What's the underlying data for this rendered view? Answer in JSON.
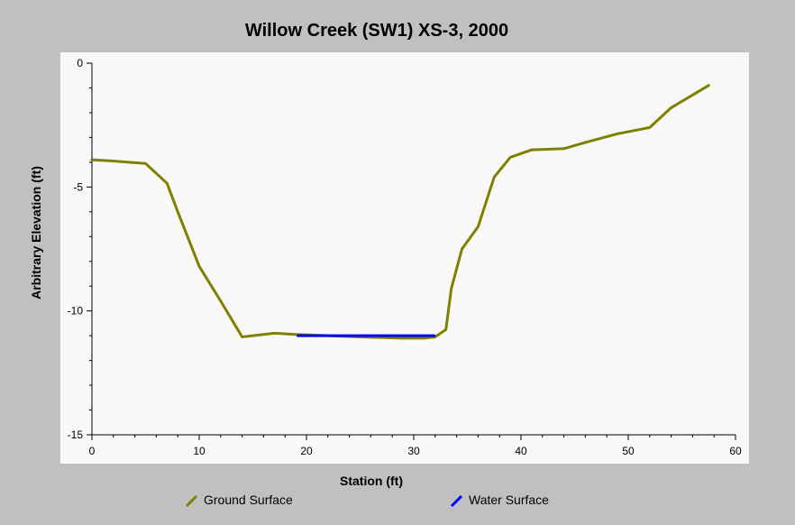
{
  "chart_data": {
    "type": "line",
    "title": "Willow Creek (SW1) XS-3, 2000",
    "xlabel": "Station (ft)",
    "ylabel": "Arbitrary Elevation (ft)",
    "xlim": [
      0,
      60
    ],
    "ylim": [
      -15,
      0
    ],
    "x_ticks": [
      "0",
      "10",
      "20",
      "30",
      "40",
      "50",
      "60"
    ],
    "y_ticks": [
      "0",
      "-5",
      "-10",
      "-15"
    ],
    "grid": false,
    "legend_position": "bottom",
    "series": [
      {
        "name": "Ground Surface",
        "color": "#808000",
        "x": [
          0,
          2,
          5,
          7,
          8,
          10,
          12,
          14,
          17,
          19,
          22,
          25,
          29,
          31,
          32,
          33,
          33.5,
          34.5,
          36,
          37.5,
          39,
          41,
          44,
          46,
          49,
          52,
          54,
          57.5
        ],
        "y": [
          -3.9,
          -3.95,
          -4.05,
          -4.85,
          -6.0,
          -8.2,
          -9.6,
          -11.05,
          -10.9,
          -10.95,
          -11.0,
          -11.05,
          -11.1,
          -11.1,
          -11.05,
          -10.75,
          -9.1,
          -7.5,
          -6.6,
          -4.6,
          -3.8,
          -3.5,
          -3.45,
          -3.2,
          -2.85,
          -2.6,
          -1.8,
          -0.9
        ]
      },
      {
        "name": "Water Surface",
        "color": "#0000ff",
        "x": [
          19.2,
          31.9
        ],
        "y": [
          -11.0,
          -11.0
        ]
      }
    ]
  }
}
